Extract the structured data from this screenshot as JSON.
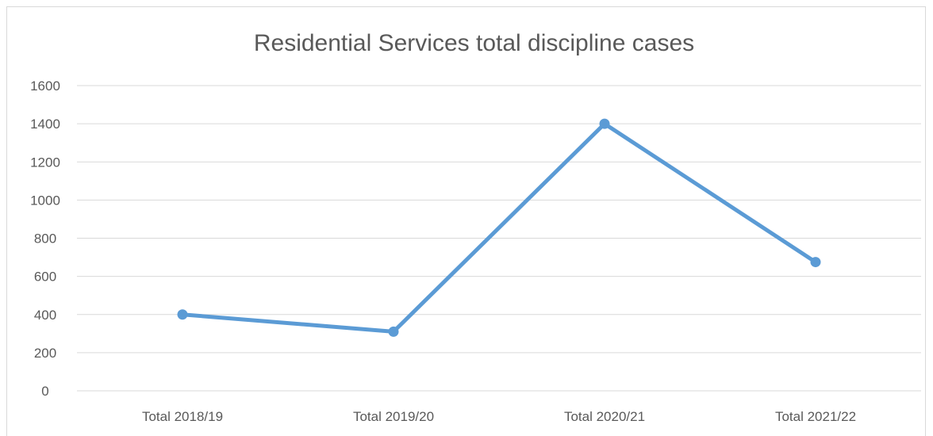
{
  "chart_data": {
    "type": "line",
    "title": "Residential Services total discipline cases",
    "categories": [
      "Total 2018/19",
      "Total 2019/20",
      "Total 2020/21",
      "Total 2021/22"
    ],
    "series": [
      {
        "values": [
          400,
          310,
          1400,
          675
        ],
        "color": "#5b9bd5"
      }
    ],
    "ylim": [
      0,
      1600
    ],
    "yticks": [
      "0",
      "200",
      "400",
      "600",
      "800",
      "1000",
      "1200",
      "1400",
      "1600"
    ],
    "grid": true,
    "gridcolor": "#d9d9d9",
    "textcolor": "#595959"
  }
}
